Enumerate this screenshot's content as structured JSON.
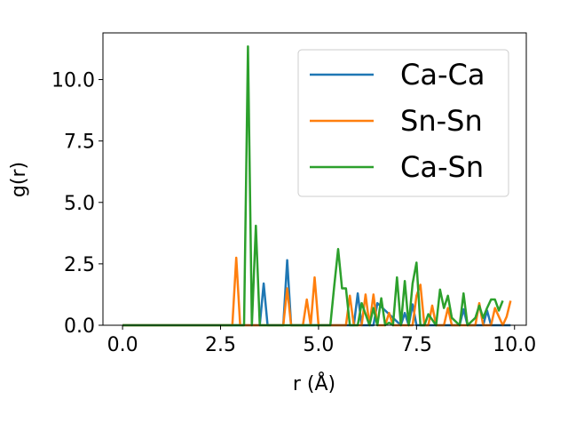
{
  "chart_data": {
    "type": "line",
    "title": "",
    "xlabel": "r (Å)",
    "ylabel": "g(r)",
    "xlim": [
      -0.5,
      10.3
    ],
    "ylim": [
      0,
      11.9
    ],
    "xticks": [
      0.0,
      2.5,
      5.0,
      7.5,
      10.0
    ],
    "xtick_labels": [
      "0.0",
      "2.5",
      "5.0",
      "7.5",
      "10.0"
    ],
    "yticks": [
      0.0,
      2.5,
      5.0,
      7.5,
      10.0
    ],
    "ytick_labels": [
      "0.0",
      "2.5",
      "5.0",
      "7.5",
      "10.0"
    ],
    "grid": false,
    "legend_position": "top-right",
    "series": [
      {
        "name": "Ca-Ca",
        "color": "#1f77b4",
        "x": [
          0.0,
          3.5,
          3.6,
          3.7,
          4.1,
          4.2,
          4.3,
          5.9,
          6.0,
          6.1,
          6.4,
          6.5,
          7.1,
          7.2,
          7.3,
          7.4,
          7.5,
          8.6,
          8.7,
          8.8,
          9.2,
          9.3,
          9.4,
          9.9
        ],
        "y": [
          0.0,
          0.0,
          1.7,
          0.0,
          0.0,
          2.65,
          0.0,
          0.0,
          1.3,
          0.0,
          0.0,
          0.9,
          0.0,
          0.5,
          0.0,
          0.85,
          0.0,
          0.0,
          0.65,
          0.0,
          0.0,
          0.6,
          0.0,
          0.0
        ]
      },
      {
        "name": "Sn-Sn",
        "color": "#ff7f0e",
        "x": [
          0.0,
          2.8,
          2.9,
          3.0,
          4.1,
          4.2,
          4.3,
          4.6,
          4.7,
          4.8,
          4.9,
          5.0,
          5.7,
          5.8,
          5.9,
          6.1,
          6.2,
          6.3,
          6.4,
          6.5,
          6.7,
          6.8,
          6.9,
          7.4,
          7.5,
          7.6,
          7.7,
          7.8,
          7.9,
          8.0,
          8.2,
          8.3,
          8.4,
          9.0,
          9.1,
          9.2,
          9.4,
          9.5,
          9.7,
          9.8,
          9.9
        ],
        "y": [
          0.0,
          0.0,
          2.75,
          0.0,
          0.0,
          1.5,
          0.0,
          0.0,
          1.05,
          0.0,
          1.95,
          0.0,
          0.0,
          1.2,
          0.0,
          0.0,
          1.25,
          0.0,
          1.25,
          0.0,
          0.0,
          0.5,
          0.0,
          0.0,
          1.2,
          1.65,
          0.0,
          0.0,
          0.8,
          0.0,
          0.0,
          0.7,
          0.0,
          0.0,
          0.9,
          0.0,
          0.0,
          0.7,
          0.0,
          0.35,
          1.0
        ]
      },
      {
        "name": "Ca-Sn",
        "color": "#2ca02c",
        "x": [
          0.0,
          3.1,
          3.2,
          3.3,
          3.4,
          3.5,
          5.3,
          5.4,
          5.5,
          5.6,
          5.7,
          5.8,
          6.0,
          6.1,
          6.3,
          6.4,
          6.5,
          6.6,
          6.7,
          6.8,
          6.9,
          7.0,
          7.1,
          7.2,
          7.3,
          7.4,
          7.5,
          7.6,
          7.7,
          7.8,
          8.0,
          8.1,
          8.2,
          8.3,
          8.4,
          8.6,
          8.7,
          8.8,
          9.0,
          9.1,
          9.2,
          9.3,
          9.4,
          9.5,
          9.6,
          9.7
        ],
        "y": [
          0.0,
          0.0,
          11.35,
          0.0,
          4.05,
          0.0,
          0.0,
          1.6,
          3.1,
          1.5,
          1.5,
          0.0,
          0.0,
          0.9,
          0.0,
          0.7,
          0.0,
          1.1,
          0.0,
          0.1,
          0.0,
          1.95,
          0.0,
          1.8,
          0.0,
          1.7,
          2.55,
          0.0,
          0.0,
          0.45,
          0.0,
          1.45,
          0.7,
          1.2,
          0.3,
          0.0,
          1.3,
          0.0,
          0.3,
          0.8,
          0.3,
          0.7,
          1.05,
          1.05,
          0.6,
          1.0
        ]
      }
    ]
  }
}
